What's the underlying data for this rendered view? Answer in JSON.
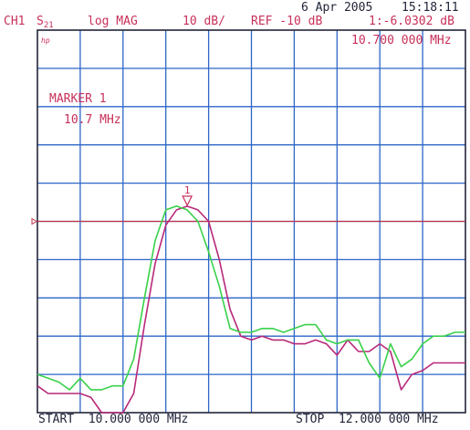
{
  "header": {
    "date": "6 Apr 2005",
    "time": "15:18:11",
    "channel": "CH1",
    "param_main": "S",
    "param_sub": "21",
    "format": "log MAG",
    "scale": "10 dB/",
    "reference": "REF -10 dB",
    "marker_readout": "1:-6.0302 dB",
    "marker_frequency": "10.700 000 MHz"
  },
  "logo": "hp",
  "marker_box": {
    "title": "MARKER 1",
    "value": "10.7 MHz",
    "symbol": "1"
  },
  "footer": {
    "start": "START  10.000 000 MHz",
    "stop": "STOP  12.000 000 MHz"
  },
  "colors": {
    "grid": "#2d66c8",
    "frame": "#22253a",
    "magenta_trace": "#b8287a",
    "green_trace": "#39d14a",
    "reference_line": "#c2354a",
    "text_dark": "#22253a",
    "text_magenta": "#c8305a"
  },
  "chart_data": {
    "type": "line",
    "x_range_mhz": [
      10.0,
      12.0
    ],
    "y_range_db": [
      -60,
      40
    ],
    "reference_db": -10,
    "y_divisions": 10,
    "x_divisions": 10,
    "grid": true,
    "marker": {
      "label": "1",
      "x_mhz": 10.7,
      "y_db": -6.0302
    },
    "series": [
      {
        "color_key": "magenta_trace",
        "x": [
          10.0,
          10.05,
          10.1,
          10.15,
          10.2,
          10.25,
          10.3,
          10.35,
          10.4,
          10.45,
          10.5,
          10.55,
          10.6,
          10.65,
          10.7,
          10.75,
          10.8,
          10.85,
          10.9,
          10.95,
          11.0,
          11.05,
          11.1,
          11.15,
          11.2,
          11.25,
          11.3,
          11.35,
          11.4,
          11.45,
          11.5,
          11.55,
          11.6,
          11.65,
          11.7,
          11.75,
          11.8,
          11.85,
          11.9,
          11.95,
          12.0
        ],
        "y": [
          -53,
          -55,
          -55,
          -55,
          -55,
          -56,
          -60,
          -60,
          -60,
          -55,
          -37,
          -21,
          -11,
          -7,
          -6.0302,
          -7,
          -10,
          -20,
          -33,
          -40,
          -41,
          -40,
          -41,
          -41,
          -42,
          -42,
          -41,
          -42,
          -45,
          -41,
          -44,
          -44,
          -42,
          -44,
          -54,
          -50,
          -49,
          -47,
          -47,
          -47,
          -47
        ]
      },
      {
        "color_key": "green_trace",
        "x": [
          10.0,
          10.05,
          10.1,
          10.15,
          10.2,
          10.25,
          10.3,
          10.35,
          10.4,
          10.45,
          10.5,
          10.55,
          10.6,
          10.65,
          10.7,
          10.75,
          10.8,
          10.85,
          10.9,
          10.95,
          11.0,
          11.05,
          11.1,
          11.15,
          11.2,
          11.25,
          11.3,
          11.35,
          11.4,
          11.45,
          11.5,
          11.55,
          11.6,
          11.65,
          11.7,
          11.75,
          11.8,
          11.85,
          11.9,
          11.95,
          12.0
        ],
        "y": [
          -50,
          -51,
          -52,
          -54,
          -51,
          -54,
          -54,
          -53,
          -53,
          -46,
          -30,
          -15,
          -7,
          -6,
          -7,
          -10,
          -18,
          -27,
          -38,
          -39,
          -39,
          -38,
          -38,
          -39,
          -38,
          -37,
          -37,
          -41,
          -42,
          -41,
          -41,
          -47,
          -51,
          -42,
          -48,
          -46,
          -42,
          -40,
          -40,
          -39,
          -39
        ]
      }
    ]
  }
}
